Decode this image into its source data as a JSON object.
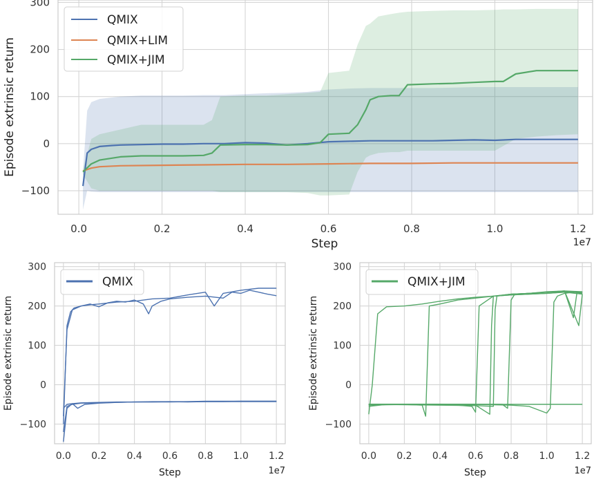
{
  "colors": {
    "QMIX": "#4c72b0",
    "QMIX+LIM": "#dd8452",
    "QMIX+JIM": "#55a868"
  },
  "chart_data": [
    {
      "type": "line",
      "xlabel": "Step",
      "ylabel": "Episode extrinsic return",
      "x_offset_text": "1e7",
      "xlim": [
        -0.05,
        1.235
      ],
      "ylim": [
        -150,
        305
      ],
      "xticks": [
        0.0,
        0.2,
        0.4,
        0.6,
        0.8,
        1.0,
        1.2
      ],
      "xtick_labels": [
        "0.0",
        "0.2",
        "0.4",
        "0.6",
        "0.8",
        "1.0",
        "1.2"
      ],
      "yticks": [
        -100,
        0,
        100,
        200,
        300
      ],
      "ytick_labels": [
        "−100",
        "0",
        "100",
        "200",
        "300"
      ],
      "grid": true,
      "legend": "top-left",
      "series": [
        {
          "name": "QMIX",
          "x": [
            0.01,
            0.02,
            0.03,
            0.05,
            0.08,
            0.1,
            0.15,
            0.2,
            0.25,
            0.3,
            0.35,
            0.4,
            0.45,
            0.5,
            0.55,
            0.6,
            0.65,
            0.7,
            0.75,
            0.8,
            0.85,
            0.9,
            0.95,
            1.0,
            1.05,
            1.1,
            1.15,
            1.2
          ],
          "y": [
            -90,
            -20,
            -12,
            -6,
            -4,
            -3,
            -2,
            -1,
            -1,
            0,
            0,
            2,
            1,
            -3,
            0,
            4,
            5,
            6,
            6,
            6,
            6,
            7,
            8,
            7,
            9,
            9,
            9,
            9
          ],
          "band_low": [
            -140,
            -100,
            -102,
            -103,
            -103,
            -103,
            -103,
            -103,
            -103,
            -103,
            -103,
            -103,
            -103,
            -103,
            -103,
            -103,
            -103,
            -103,
            -103,
            -103,
            -103,
            -103,
            -103,
            -103,
            -103,
            -103,
            -103,
            -103
          ],
          "band_high": [
            -60,
            70,
            88,
            95,
            98,
            100,
            102,
            102,
            102,
            103,
            103,
            105,
            107,
            108,
            110,
            115,
            117,
            118,
            118,
            118,
            118,
            119,
            120,
            120,
            120,
            120,
            120,
            120
          ]
        },
        {
          "name": "QMIX+LIM",
          "x": [
            0.01,
            0.03,
            0.05,
            0.1,
            0.2,
            0.3,
            0.4,
            0.5,
            0.6,
            0.7,
            0.8,
            0.9,
            1.0,
            1.1,
            1.2
          ],
          "y": [
            -58,
            -52,
            -49,
            -47,
            -46,
            -45,
            -44,
            -44,
            -43,
            -42,
            -42,
            -41,
            -41,
            -41,
            -41
          ]
        },
        {
          "name": "QMIX+JIM",
          "x": [
            0.01,
            0.03,
            0.05,
            0.1,
            0.15,
            0.2,
            0.25,
            0.3,
            0.32,
            0.34,
            0.4,
            0.45,
            0.5,
            0.55,
            0.58,
            0.6,
            0.65,
            0.67,
            0.69,
            0.7,
            0.72,
            0.75,
            0.77,
            0.79,
            0.85,
            0.9,
            0.95,
            1.0,
            1.02,
            1.05,
            1.1,
            1.15,
            1.2
          ],
          "y": [
            -60,
            -43,
            -35,
            -28,
            -26,
            -26,
            -26,
            -25,
            -20,
            -3,
            -2,
            -2,
            -3,
            -2,
            2,
            20,
            22,
            40,
            72,
            93,
            100,
            102,
            102,
            125,
            127,
            128,
            130,
            132,
            132,
            148,
            155,
            155,
            155
          ],
          "band_low": [
            -65,
            -95,
            -100,
            -100,
            -100,
            -100,
            -100,
            -100,
            -100,
            -103,
            -103,
            -103,
            -103,
            -105,
            -110,
            -110,
            -108,
            -60,
            -30,
            -25,
            -20,
            -18,
            -18,
            -15,
            -15,
            -15,
            -15,
            -15,
            -5,
            10,
            15,
            18,
            20
          ],
          "band_high": [
            -55,
            10,
            20,
            30,
            40,
            40,
            40,
            40,
            50,
            100,
            102,
            102,
            105,
            108,
            110,
            150,
            155,
            210,
            250,
            255,
            270,
            275,
            278,
            280,
            282,
            283,
            283,
            284,
            285,
            285,
            286,
            286,
            286
          ]
        }
      ]
    },
    {
      "type": "line",
      "xlabel": "Step",
      "ylabel": "Episode extrinsic return",
      "x_offset_text": "1e7",
      "xlim": [
        -0.05,
        1.25
      ],
      "ylim": [
        -150,
        310
      ],
      "xticks": [
        0.0,
        0.2,
        0.4,
        0.6,
        0.8,
        1.0,
        1.2
      ],
      "xtick_labels": [
        "0.0",
        "0.2",
        "0.4",
        "0.6",
        "0.8",
        "1.0",
        "1.2"
      ],
      "yticks": [
        -100,
        0,
        100,
        200,
        300
      ],
      "ytick_labels": [
        "−100",
        "0",
        "100",
        "200",
        "300"
      ],
      "grid": true,
      "legend": "top-left",
      "legend_entries": [
        "QMIX"
      ],
      "series": [
        {
          "x": [
            0.0,
            0.02,
            0.04,
            0.06,
            0.1,
            0.15,
            0.2,
            0.25,
            0.3,
            0.35,
            0.4,
            0.45,
            0.48,
            0.5,
            0.55,
            0.6,
            0.7,
            0.8,
            0.9,
            0.95,
            1.0,
            1.05,
            1.1,
            1.15,
            1.2
          ],
          "y": [
            -100,
            150,
            185,
            195,
            200,
            205,
            198,
            208,
            212,
            210,
            215,
            205,
            180,
            200,
            212,
            218,
            222,
            225,
            220,
            235,
            232,
            240,
            235,
            230,
            226
          ]
        },
        {
          "x": [
            0.0,
            0.02,
            0.05,
            0.1,
            0.15,
            0.2,
            0.3,
            0.4,
            0.5,
            0.6,
            0.7,
            0.8,
            0.85,
            0.9,
            1.0,
            1.1,
            1.2
          ],
          "y": [
            -80,
            140,
            190,
            200,
            203,
            205,
            210,
            212,
            218,
            220,
            228,
            235,
            200,
            232,
            240,
            245,
            245
          ]
        },
        {
          "x": [
            0.0,
            0.02,
            0.05,
            0.1,
            0.2,
            0.3,
            0.4,
            0.5,
            0.6,
            0.7,
            0.8,
            0.9,
            1.0,
            1.1,
            1.2
          ],
          "y": [
            -145,
            -60,
            -48,
            -46,
            -45,
            -44,
            -44,
            -43,
            -43,
            -43,
            -42,
            -42,
            -42,
            -42,
            -42
          ]
        },
        {
          "x": [
            0.0,
            0.02,
            0.05,
            0.1,
            0.2,
            0.3,
            0.4,
            0.5,
            0.6,
            0.7,
            0.8,
            0.9,
            1.0,
            1.1,
            1.2
          ],
          "y": [
            -120,
            -55,
            -50,
            -47,
            -46,
            -45,
            -44,
            -44,
            -43,
            -44,
            -43,
            -43,
            -42,
            -42,
            -42
          ]
        },
        {
          "x": [
            0.0,
            0.02,
            0.05,
            0.08,
            0.12,
            0.2,
            0.3,
            0.4,
            0.5,
            0.6,
            0.7,
            0.8,
            0.9,
            1.0,
            1.1,
            1.2
          ],
          "y": [
            -60,
            -50,
            -48,
            -60,
            -50,
            -47,
            -45,
            -44,
            -44,
            -44,
            -43,
            -43,
            -43,
            -43,
            -43,
            -43
          ]
        }
      ]
    },
    {
      "type": "line",
      "xlabel": "Step",
      "ylabel": "Episode extrinsic return",
      "x_offset_text": "1e7",
      "xlim": [
        -0.05,
        1.25
      ],
      "ylim": [
        -150,
        310
      ],
      "xticks": [
        0.0,
        0.2,
        0.4,
        0.6,
        0.8,
        1.0,
        1.2
      ],
      "xtick_labels": [
        "0.0",
        "0.2",
        "0.4",
        "0.6",
        "0.8",
        "1.0",
        "1.2"
      ],
      "yticks": [
        -100,
        0,
        100,
        200,
        300
      ],
      "ytick_labels": [
        "−100",
        "0",
        "100",
        "200",
        "300"
      ],
      "grid": true,
      "legend": "top-left",
      "legend_entries": [
        "QMIX+JIM"
      ],
      "series": [
        {
          "x": [
            0.0,
            0.02,
            0.05,
            0.1,
            0.2,
            0.3,
            0.4,
            0.5,
            0.6,
            0.7,
            0.8,
            0.9,
            1.0,
            1.1,
            1.2
          ],
          "y": [
            -75,
            0,
            180,
            198,
            200,
            205,
            212,
            218,
            222,
            225,
            228,
            230,
            232,
            235,
            235
          ]
        },
        {
          "x": [
            0.0,
            0.1,
            0.2,
            0.3,
            0.32,
            0.34,
            0.4,
            0.5,
            0.6,
            0.7,
            0.8,
            0.9,
            1.0,
            1.1,
            1.2
          ],
          "y": [
            -55,
            -50,
            -50,
            -52,
            -80,
            200,
            205,
            215,
            220,
            225,
            228,
            230,
            232,
            235,
            230
          ]
        },
        {
          "x": [
            0.0,
            0.2,
            0.4,
            0.5,
            0.58,
            0.6,
            0.62,
            0.7,
            0.8,
            0.9,
            1.0,
            1.1,
            1.15,
            1.17,
            1.2
          ],
          "y": [
            -52,
            -50,
            -50,
            -52,
            -55,
            -70,
            200,
            225,
            230,
            232,
            235,
            238,
            170,
            235,
            235
          ]
        },
        {
          "x": [
            0.0,
            0.2,
            0.4,
            0.6,
            0.68,
            0.69,
            0.7,
            0.8,
            0.9,
            1.0,
            1.1,
            1.2
          ],
          "y": [
            -50,
            -50,
            -50,
            -52,
            -75,
            150,
            225,
            230,
            232,
            235,
            236,
            235
          ]
        },
        {
          "x": [
            0.0,
            0.2,
            0.4,
            0.6,
            0.7,
            0.71,
            0.72,
            0.8,
            0.9,
            1.0,
            1.1,
            1.2
          ],
          "y": [
            -50,
            -51,
            -52,
            -53,
            -55,
            190,
            225,
            230,
            232,
            236,
            238,
            236
          ]
        },
        {
          "x": [
            0.0,
            0.2,
            0.4,
            0.6,
            0.7,
            0.75,
            0.78,
            0.8,
            0.82,
            0.9,
            1.0,
            1.1,
            1.18,
            1.2
          ],
          "y": [
            -50,
            -50,
            -50,
            -50,
            -50,
            -50,
            -60,
            215,
            230,
            232,
            235,
            238,
            150,
            230
          ]
        },
        {
          "x": [
            0.0,
            0.2,
            0.4,
            0.6,
            0.8,
            0.9,
            1.0,
            1.02,
            1.04,
            1.06,
            1.1,
            1.15,
            1.2
          ],
          "y": [
            -50,
            -50,
            -50,
            -50,
            -52,
            -55,
            -72,
            -60,
            210,
            225,
            232,
            235,
            232
          ]
        },
        {
          "x": [
            0.0,
            0.2,
            0.4,
            0.6,
            0.8,
            1.0,
            1.2
          ],
          "y": [
            -50,
            -50,
            -50,
            -50,
            -50,
            -50,
            -50
          ]
        }
      ]
    }
  ]
}
